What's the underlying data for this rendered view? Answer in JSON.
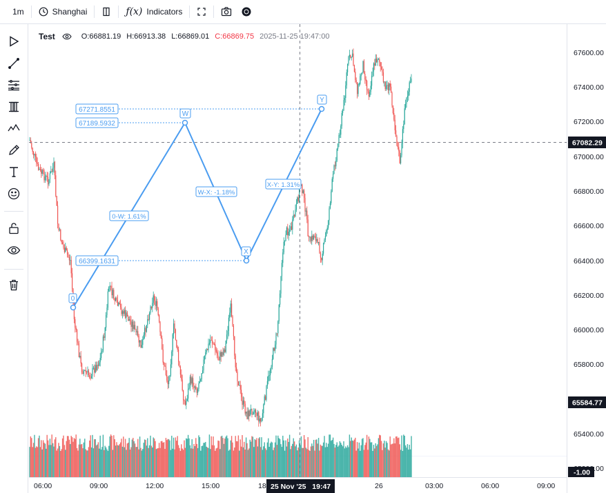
{
  "toolbar": {
    "interval": "1m",
    "timezone": "Shanghai",
    "indicators": "Indicators"
  },
  "legend": {
    "title": "Test",
    "open": "O:66881.19",
    "high": "H:66913.38",
    "low": "L:66869.01",
    "close": "C:66869.75",
    "datetime": "2025-11-25 19:47:00"
  },
  "price_axis": {
    "ticks": [
      "67600.00",
      "67400.00",
      "67200.00",
      "67000.00",
      "66800.00",
      "66600.00",
      "66400.00",
      "66200.00",
      "66000.00",
      "65800.00",
      "65400.00",
      "65200.00"
    ],
    "last_price": "67082.29",
    "low_marker": "65584.77",
    "volume_marker": "-1.00"
  },
  "time_axis": {
    "ticks": [
      "06:00",
      "09:00",
      "12:00",
      "15:00",
      "18",
      "26",
      "03:00",
      "06:00",
      "09:00"
    ],
    "crosshair": "25 Nov '25   19:47"
  },
  "pattern": {
    "points": [
      "0",
      "W",
      "X",
      "Y"
    ],
    "price_labels": [
      "67271.8551",
      "67189.5932",
      "66399.1631"
    ],
    "segment_labels": [
      "0-W: 1.61%",
      "W-X: -1.18%",
      "X-Y: 1.31%"
    ]
  },
  "colors": {
    "up": "#26a69a",
    "down": "#ef5350",
    "pattern": "#4a9cf0",
    "text": "#131722"
  },
  "icons": [
    "clock-icon",
    "layout-icon",
    "function-icon",
    "fullscreen-icon",
    "camera-icon",
    "record-icon",
    "cursor-icon",
    "trendline-icon",
    "fib-icon",
    "pattern-icon",
    "wave-icon",
    "brush-icon",
    "text-icon",
    "emoji-icon",
    "lock-icon",
    "eye-icon",
    "trash-icon"
  ]
}
